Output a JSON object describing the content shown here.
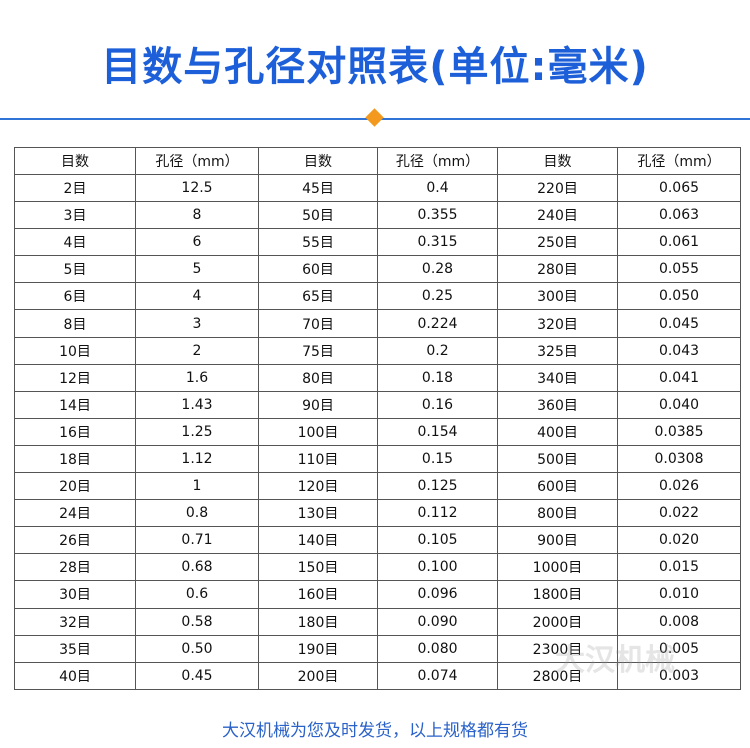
{
  "header": {
    "title": "目数与孔径对照表(单位:毫米)"
  },
  "table": {
    "columns": [
      "目数",
      "孔径（mm）",
      "目数",
      "孔径（mm）",
      "目数",
      "孔径（mm）"
    ],
    "rows": [
      [
        "2目",
        "12.5",
        "45目",
        "0.4",
        "220目",
        "0.065"
      ],
      [
        "3目",
        "8",
        "50目",
        "0.355",
        "240目",
        "0.063"
      ],
      [
        "4目",
        "6",
        "55目",
        "0.315",
        "250目",
        "0.061"
      ],
      [
        "5目",
        "5",
        "60目",
        "0.28",
        "280目",
        "0.055"
      ],
      [
        "6目",
        "4",
        "65目",
        "0.25",
        "300目",
        "0.050"
      ],
      [
        "8目",
        "3",
        "70目",
        "0.224",
        "320目",
        "0.045"
      ],
      [
        "10目",
        "2",
        "75目",
        "0.2",
        "325目",
        "0.043"
      ],
      [
        "12目",
        "1.6",
        "80目",
        "0.18",
        "340目",
        "0.041"
      ],
      [
        "14目",
        "1.43",
        "90目",
        "0.16",
        "360目",
        "0.040"
      ],
      [
        "16目",
        "1.25",
        "100目",
        "0.154",
        "400目",
        "0.0385"
      ],
      [
        "18目",
        "1.12",
        "110目",
        "0.15",
        "500目",
        "0.0308"
      ],
      [
        "20目",
        "1",
        "120目",
        "0.125",
        "600目",
        "0.026"
      ],
      [
        "24目",
        "0.8",
        "130目",
        "0.112",
        "800目",
        "0.022"
      ],
      [
        "26目",
        "0.71",
        "140目",
        "0.105",
        "900目",
        "0.020"
      ],
      [
        "28目",
        "0.68",
        "150目",
        "0.100",
        "1000目",
        "0.015"
      ],
      [
        "30目",
        "0.6",
        "160目",
        "0.096",
        "1800目",
        "0.010"
      ],
      [
        "32目",
        "0.58",
        "180目",
        "0.090",
        "2000目",
        "0.008"
      ],
      [
        "35目",
        "0.50",
        "190目",
        "0.080",
        "2300目",
        "0.005"
      ],
      [
        "40目",
        "0.45",
        "200目",
        "0.074",
        "2800目",
        "0.003"
      ]
    ]
  },
  "watermark": "大汉机械",
  "footer": {
    "note": "大汉机械为您及时发货，以上规格都有货"
  }
}
